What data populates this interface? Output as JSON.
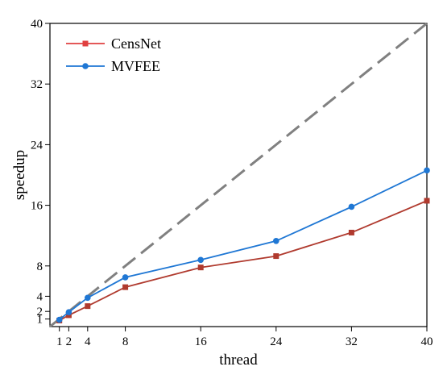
{
  "chart_data": {
    "type": "line",
    "title": "",
    "xlabel": "thread",
    "ylabel": "speedup",
    "xlim": [
      0,
      40
    ],
    "ylim": [
      0,
      40
    ],
    "xticks": [
      1,
      2,
      4,
      8,
      16,
      24,
      32,
      40
    ],
    "yticks": [
      1,
      2,
      4,
      8,
      16,
      24,
      32,
      40
    ],
    "grid": false,
    "legend_position": "top-left",
    "reference_line": {
      "x": [
        0,
        40
      ],
      "y": [
        0,
        40
      ],
      "style": "dashed",
      "color": "#808080"
    },
    "series": [
      {
        "name": "CensNet",
        "color": "#b03a2e",
        "legend_color": "#e04040",
        "marker": "square",
        "x": [
          1,
          2,
          4,
          8,
          16,
          24,
          32,
          40
        ],
        "y": [
          0.8,
          1.5,
          2.7,
          5.2,
          7.8,
          9.3,
          12.4,
          16.6
        ]
      },
      {
        "name": "MVFEE",
        "color": "#1f77d4",
        "legend_color": "#1f77d4",
        "marker": "circle",
        "x": [
          1,
          2,
          4,
          8,
          16,
          24,
          32,
          40
        ],
        "y": [
          0.9,
          1.9,
          3.8,
          6.5,
          8.8,
          11.3,
          15.8,
          20.6
        ]
      }
    ]
  }
}
